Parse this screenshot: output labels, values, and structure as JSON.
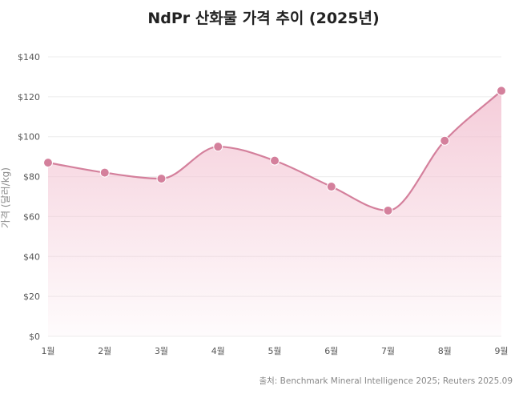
{
  "chart_data": {
    "type": "line",
    "title": "NdPr 산화물 가격 추이 (2025년)",
    "xlabel": "",
    "ylabel": "가격 (달러/kg)",
    "categories": [
      "1월",
      "2월",
      "3월",
      "4월",
      "5월",
      "6월",
      "7월",
      "8월",
      "9월"
    ],
    "series": [
      {
        "name": "NdPr 산화물 가격",
        "values": [
          87,
          82,
          79,
          95,
          88,
          75,
          63,
          98,
          123
        ]
      }
    ],
    "ylim": [
      0,
      140
    ],
    "yticks": [
      0,
      20,
      40,
      60,
      80,
      100,
      120,
      140
    ],
    "ytick_labels": [
      "$0",
      "$20",
      "$40",
      "$60",
      "$80",
      "$100",
      "$120",
      "$140"
    ],
    "grid": true,
    "line_color": "#d4809c",
    "fill_color": "#f3c4d3",
    "source": "출처: Benchmark Mineral Intelligence 2025; Reuters 2025.09"
  }
}
